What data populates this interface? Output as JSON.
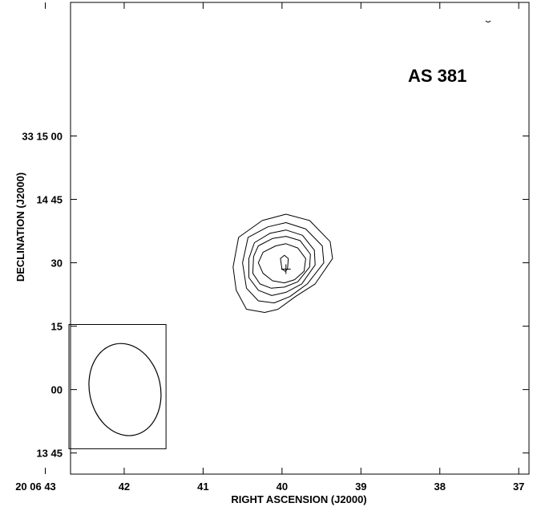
{
  "chart_data": {
    "type": "contour",
    "title": "AS 381",
    "xlabel": "RIGHT ASCENSION (J2000)",
    "ylabel": "DECLINATION (J2000)",
    "x_unit": "time seconds of RA (20 06 ss)",
    "y_unit": "arcsec of Dec (33 mm ss)",
    "xlim": [
      42.68,
      36.87
    ],
    "ylim": [
      -4.0,
      18.32
    ],
    "x_ticks": [
      {
        "value": 43,
        "label": "20 06 43"
      },
      {
        "value": 42,
        "label": "42"
      },
      {
        "value": 41,
        "label": "41"
      },
      {
        "value": 40,
        "label": "40"
      },
      {
        "value": 39,
        "label": "39"
      },
      {
        "value": 38,
        "label": "38"
      },
      {
        "value": 37,
        "label": "37"
      }
    ],
    "y_ticks": [
      {
        "value": -3,
        "label": "13 45"
      },
      {
        "value": 0,
        "label": "00"
      },
      {
        "value": 3,
        "label": "15"
      },
      {
        "value": 6,
        "label": "30"
      },
      {
        "value": 9,
        "label": "14 45"
      },
      {
        "value": 12,
        "label": "33 15 00"
      }
    ],
    "peak": {
      "x": 39.95,
      "y": 5.7
    },
    "contours": [
      {
        "level": 1,
        "points": [
          [
            40.55,
            7.2
          ],
          [
            40.25,
            8.0
          ],
          [
            39.95,
            8.3
          ],
          [
            39.65,
            8.0
          ],
          [
            39.39,
            7.0
          ],
          [
            39.36,
            6.2
          ],
          [
            39.58,
            5.0
          ],
          [
            39.83,
            4.4
          ],
          [
            40.05,
            3.8
          ],
          [
            40.22,
            3.65
          ],
          [
            40.45,
            3.8
          ],
          [
            40.58,
            4.7
          ],
          [
            40.62,
            5.8
          ]
        ]
      },
      {
        "level": 2,
        "points": [
          [
            40.43,
            7.2
          ],
          [
            40.18,
            7.7
          ],
          [
            39.95,
            7.9
          ],
          [
            39.7,
            7.6
          ],
          [
            39.49,
            6.8
          ],
          [
            39.47,
            6.0
          ],
          [
            39.68,
            5.0
          ],
          [
            39.9,
            4.4
          ],
          [
            40.1,
            4.1
          ],
          [
            40.3,
            4.2
          ],
          [
            40.45,
            4.8
          ],
          [
            40.5,
            6.0
          ]
        ]
      },
      {
        "level": 3,
        "points": [
          [
            40.35,
            6.95
          ],
          [
            40.15,
            7.4
          ],
          [
            39.95,
            7.55
          ],
          [
            39.74,
            7.3
          ],
          [
            39.59,
            6.6
          ],
          [
            39.58,
            5.9
          ],
          [
            39.75,
            5.0
          ],
          [
            39.95,
            4.6
          ],
          [
            40.13,
            4.45
          ],
          [
            40.3,
            4.7
          ],
          [
            40.42,
            5.3
          ],
          [
            40.42,
            6.2
          ]
        ]
      },
      {
        "level": 4,
        "points": [
          [
            40.3,
            6.8
          ],
          [
            40.12,
            7.15
          ],
          [
            39.95,
            7.25
          ],
          [
            39.77,
            7.05
          ],
          [
            39.64,
            6.4
          ],
          [
            39.65,
            5.8
          ],
          [
            39.8,
            5.1
          ],
          [
            39.97,
            4.85
          ],
          [
            40.14,
            4.8
          ],
          [
            40.28,
            5.0
          ],
          [
            40.37,
            5.5
          ],
          [
            40.36,
            6.3
          ]
        ]
      },
      {
        "level": 5,
        "points": [
          [
            40.24,
            6.5
          ],
          [
            40.08,
            6.8
          ],
          [
            39.95,
            6.9
          ],
          [
            39.8,
            6.7
          ],
          [
            39.7,
            6.2
          ],
          [
            39.72,
            5.6
          ],
          [
            39.84,
            5.2
          ],
          [
            39.97,
            5.05
          ],
          [
            40.12,
            5.15
          ],
          [
            40.24,
            5.5
          ],
          [
            40.3,
            6.0
          ]
        ]
      },
      {
        "level": 6,
        "points": [
          [
            40.02,
            6.2
          ],
          [
            39.97,
            6.35
          ],
          [
            39.92,
            6.2
          ],
          [
            39.93,
            5.7
          ],
          [
            39.96,
            5.6
          ],
          [
            40.0,
            5.7
          ]
        ]
      }
    ],
    "beam": {
      "center": [
        41.99,
        0.0
      ],
      "rx_seconds": 0.45,
      "ry_arcsec": 2.2
    },
    "beam_box": {
      "x": [
        42.7,
        41.47
      ],
      "y": [
        -2.8,
        3.08
      ]
    },
    "grid": false,
    "legend": "none"
  }
}
